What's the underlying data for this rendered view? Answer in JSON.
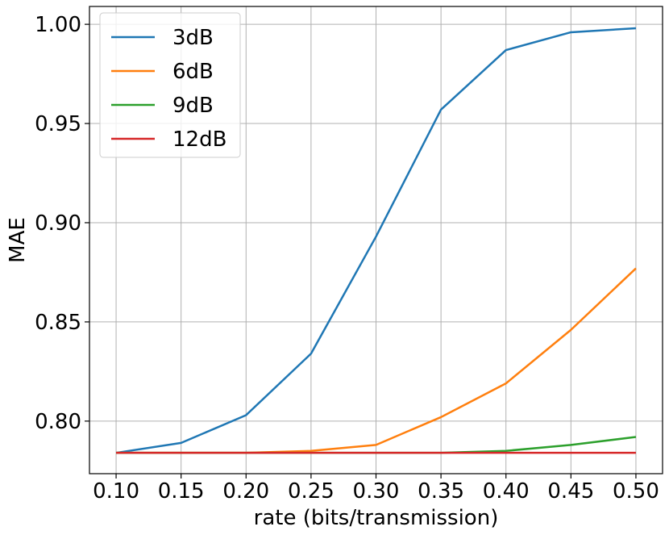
{
  "chart_data": {
    "type": "line",
    "xlabel": "rate (bits/transmission)",
    "ylabel": "MAE",
    "x": [
      0.1,
      0.15,
      0.2,
      0.25,
      0.3,
      0.35,
      0.4,
      0.45,
      0.5
    ],
    "x_tick_labels": [
      "0.10",
      "0.15",
      "0.20",
      "0.25",
      "0.30",
      "0.35",
      "0.40",
      "0.45",
      "0.50"
    ],
    "y_ticks": [
      0.8,
      0.85,
      0.9,
      0.95,
      1.0
    ],
    "y_tick_labels": [
      "0.80",
      "0.85",
      "0.90",
      "0.95",
      "1.00"
    ],
    "xlim": [
      0.0795,
      0.5205
    ],
    "ylim": [
      0.7735,
      1.009
    ],
    "grid": true,
    "legend_position": "top-left",
    "series": [
      {
        "name": "3dB",
        "color": "#1f77b4",
        "values": [
          0.784,
          0.789,
          0.803,
          0.834,
          0.893,
          0.957,
          0.987,
          0.996,
          0.998
        ]
      },
      {
        "name": "6dB",
        "color": "#ff7f0e",
        "values": [
          0.784,
          0.784,
          0.784,
          0.785,
          0.788,
          0.802,
          0.819,
          0.846,
          0.877
        ]
      },
      {
        "name": "9dB",
        "color": "#2ca02c",
        "values": [
          0.784,
          0.784,
          0.784,
          0.784,
          0.784,
          0.784,
          0.785,
          0.788,
          0.792
        ]
      },
      {
        "name": "12dB",
        "color": "#d62728",
        "values": [
          0.784,
          0.784,
          0.784,
          0.784,
          0.784,
          0.784,
          0.784,
          0.784,
          0.784
        ]
      }
    ]
  }
}
